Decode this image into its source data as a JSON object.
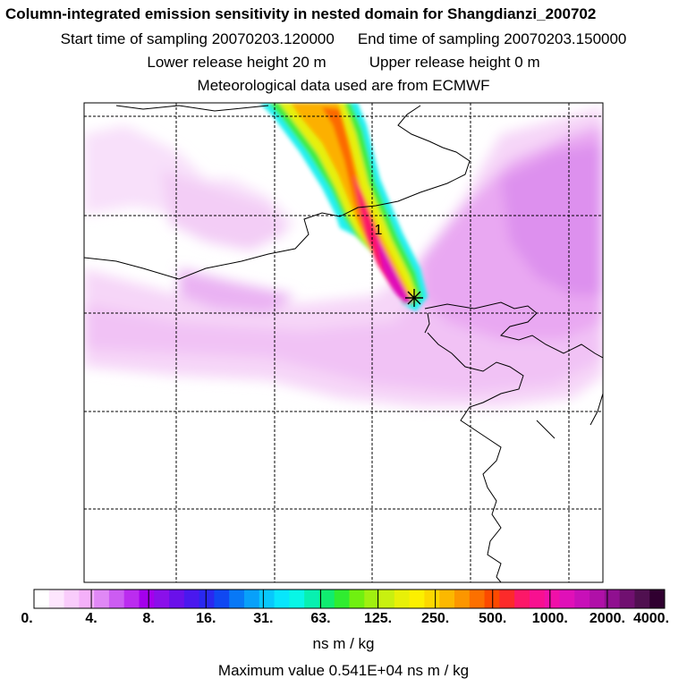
{
  "header": {
    "title": "Column-integrated emission sensitivity in nested domain for Shangdianzi_200702",
    "start_label": "Start time of sampling 20070203.120000",
    "end_label": "End time of sampling 20070203.150000",
    "lower_label": "Lower release height   20 m",
    "upper_label": "Upper release height    0 m",
    "met_label": "Meteorological data used are from ECMWF"
  },
  "map": {
    "marker_label": "1",
    "plume_color_core": "#ff1f6a",
    "background_tint": "#f3cdf6"
  },
  "colorbar": {
    "ticks": [
      "0.",
      "4.",
      "8.",
      "16.",
      "31.",
      "63.",
      "125.",
      "250.",
      "500.",
      "1000.",
      "2000.",
      "4000."
    ],
    "colors": [
      "#ffffff",
      "#fde6fd",
      "#f9ccfb",
      "#f4b0f9",
      "#e088f5",
      "#cc5cf2",
      "#bb2cef",
      "#a400ec",
      "#8a10ea",
      "#6a10ea",
      "#4a18ee",
      "#2a28f0",
      "#1048f2",
      "#0878f6",
      "#08a0fa",
      "#08c8fc",
      "#08e6fc",
      "#08f6e6",
      "#08f0b0",
      "#10ec70",
      "#30ec30",
      "#70f010",
      "#a0f010",
      "#c8f010",
      "#e8f008",
      "#fcf000",
      "#fcd800",
      "#fcb800",
      "#fc9600",
      "#fc7000",
      "#fc4a00",
      "#fc2a2a",
      "#fc1868",
      "#f81090",
      "#f010a8",
      "#e010b8",
      "#c810b8",
      "#b010a8",
      "#901090",
      "#701070",
      "#501050",
      "#300030"
    ],
    "unit": "ns m / kg",
    "max_value": "Maximum value  0.541E+04 ns m / kg"
  }
}
